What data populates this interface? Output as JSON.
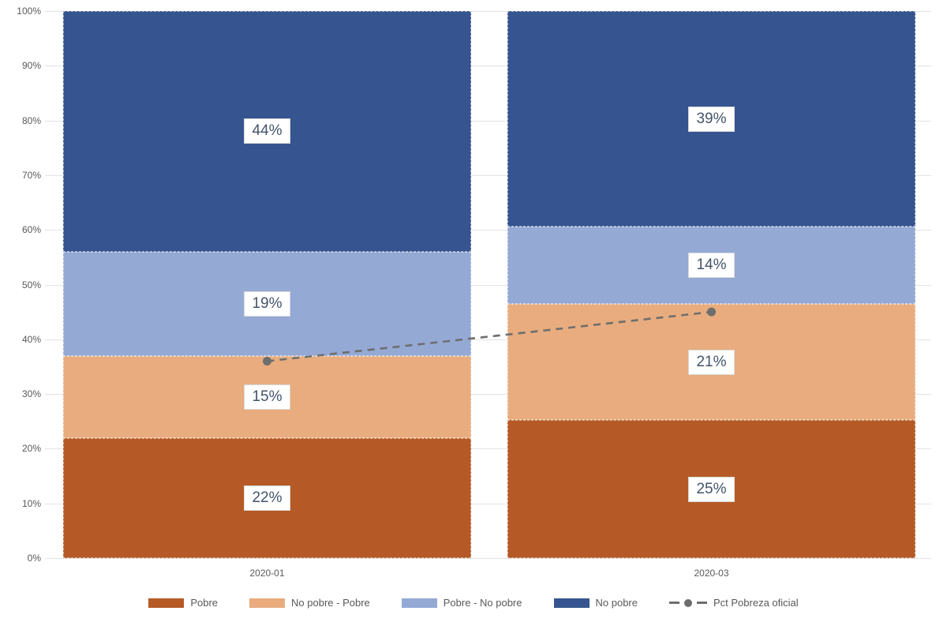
{
  "chart_data": {
    "type": "bar",
    "subtype": "stacked-100-percent",
    "title": "",
    "categories": [
      "2020-01",
      "2020-03"
    ],
    "series": [
      {
        "name": "Pobre",
        "color": "#B55A26",
        "values": [
          22,
          25
        ],
        "display_labels": [
          "22%",
          "25%"
        ]
      },
      {
        "name": "No pobre - Pobre",
        "color": "#E8AC7E",
        "values": [
          15,
          21
        ],
        "display_labels": [
          "15%",
          "21%"
        ]
      },
      {
        "name": "Pobre - No pobre",
        "color": "#95A9D5",
        "values": [
          19,
          14
        ],
        "display_labels": [
          "19%",
          "14%"
        ]
      },
      {
        "name": "No pobre",
        "color": "#36548F",
        "values": [
          44,
          39
        ],
        "display_labels": [
          "44%",
          "39%"
        ]
      }
    ],
    "line_series": {
      "name": "Pct Pobreza oficial",
      "color": "#6E6E6E",
      "style": "dashed-with-end-dots",
      "values": [
        36,
        45
      ]
    },
    "y_axis": {
      "min": 0,
      "max": 100,
      "ticks": [
        "0%",
        "10%",
        "20%",
        "30%",
        "40%",
        "50%",
        "60%",
        "70%",
        "80%",
        "90%",
        "100%"
      ],
      "grid": true
    },
    "legend_position": "bottom"
  },
  "colors": {
    "background": "#FFFFFF",
    "gridline": "#E3E3E3",
    "axis_text": "#595959",
    "data_label_text": "#44546A",
    "data_label_border": "#D9D9D9"
  }
}
